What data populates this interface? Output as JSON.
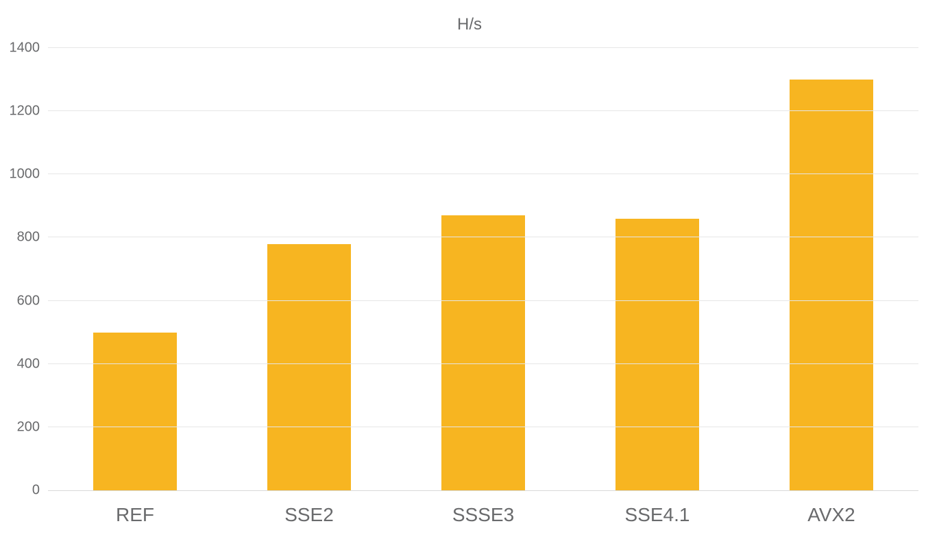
{
  "chart": {
    "type": "bar",
    "title": "H/s",
    "title_fontsize": 24,
    "title_color": "#696a6c",
    "categories": [
      "REF",
      "SSE2",
      "SSSE3",
      "SSE4.1",
      "AVX2"
    ],
    "values": [
      500,
      780,
      870,
      860,
      1300
    ],
    "bar_colors": [
      "#f7b521",
      "#f7b521",
      "#f7b521",
      "#f7b521",
      "#f7b521"
    ],
    "ylim": [
      0,
      1400
    ],
    "ytick_step": 200,
    "yticks": [
      0,
      200,
      400,
      600,
      800,
      1000,
      1200,
      1400
    ],
    "background_color": "#ffffff",
    "grid_color": "#e6e6e6",
    "axis_color": "#d9d9d9",
    "tick_label_color": "#696a6c",
    "ytick_fontsize": 20,
    "xtick_fontsize": 28,
    "bar_width_ratio": 0.48,
    "font_family": "Segoe UI"
  }
}
